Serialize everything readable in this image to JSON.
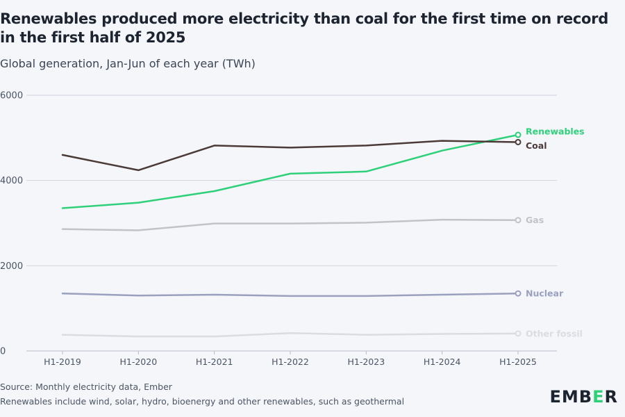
{
  "page": {
    "title": "Renewables produced more electricity than coal for the first time on record in the first half of 2025",
    "subtitle": "Global generation, Jan-Jun of each year (TWh)",
    "source": "Source: Monthly electricity data, Ember",
    "note": "Renewables include wind, solar, hydro, bioenergy and other renewables, such as geothermal",
    "logo_prefix": "EMB",
    "logo_accent": "E",
    "logo_suffix": "R",
    "logo_accent_color": "#2fd07a"
  },
  "chart_data": {
    "type": "line",
    "title": "Renewables produced more electricity than coal for the first time on record in the first half of 2025",
    "subtitle": "Global generation, Jan-Jun of each year (TWh)",
    "xlabel": "",
    "ylabel": "",
    "categories": [
      "H1-2019",
      "H1-2020",
      "H1-2021",
      "H1-2022",
      "H1-2023",
      "H1-2024",
      "H1-2025"
    ],
    "ylim": [
      0,
      6000
    ],
    "yticks": [
      0,
      2000,
      4000,
      6000
    ],
    "ytick_labels": [
      "0",
      "2000",
      "4000",
      "6000"
    ],
    "grid": true,
    "legend": "end-of-line labels",
    "series": [
      {
        "name": "Other fossil",
        "color": "#d9dce1",
        "values": [
          380,
          340,
          340,
          420,
          380,
          400,
          410
        ]
      },
      {
        "name": "Nuclear",
        "color": "#9aa0bd",
        "values": [
          1350,
          1300,
          1320,
          1290,
          1290,
          1320,
          1350
        ]
      },
      {
        "name": "Gas",
        "color": "#c2c3c8",
        "values": [
          2860,
          2830,
          2990,
          2990,
          3010,
          3080,
          3070
        ]
      },
      {
        "name": "Renewables",
        "color": "#2fd07a",
        "values": [
          3350,
          3480,
          3750,
          4160,
          4210,
          4700,
          5070
        ]
      },
      {
        "name": "Coal",
        "color": "#4b3a37",
        "values": [
          4600,
          4240,
          4820,
          4770,
          4820,
          4930,
          4900
        ]
      }
    ]
  }
}
